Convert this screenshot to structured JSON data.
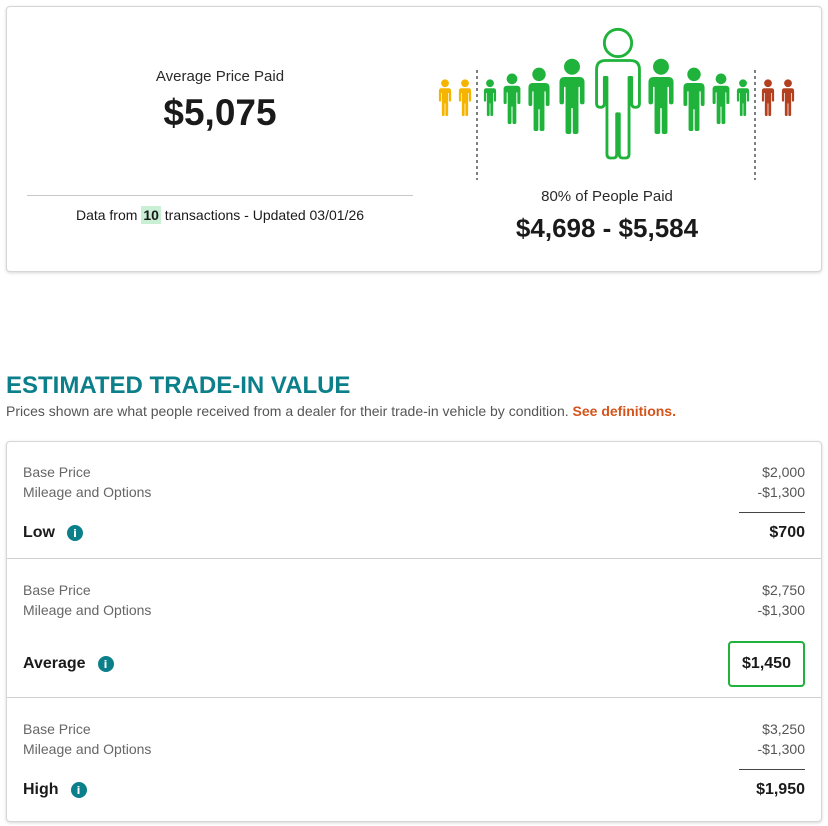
{
  "colors": {
    "accent": "#0b7f8a",
    "link": "#d4541b",
    "count_highlight": "#c9efd4",
    "success": "#1fb33b",
    "text": "#1a1a1a",
    "muted": "#666666"
  },
  "price_paid": {
    "label": "Average Price Paid",
    "value": "$5,075",
    "footnote_prefix": "Data from",
    "transaction_count": "10",
    "footnote_suffix": "transactions - Updated 03/01/26"
  },
  "price_distribution": {
    "label": "80% of People Paid",
    "range": "$4,698 - $5,584",
    "icon": "person-icon",
    "colors": {
      "below_range": "#f4b400",
      "in_range": "#1fb33b",
      "above_range": "#b3401f",
      "median_fill": "#ffffff"
    }
  },
  "trade_in": {
    "heading": "ESTIMATED TRADE-IN VALUE",
    "subtitle": "Prices shown are what people received from a dealer for their trade-in vehicle by condition.",
    "definitions_link": "See definitions.",
    "info_icon": "info-icon",
    "conditions": [
      {
        "name": "Low",
        "base_label": "Base Price",
        "base_value": "$2,000",
        "adjust_label": "Mileage and Options",
        "adjust_value": "-$1,300",
        "total": "$700",
        "highlighted": false
      },
      {
        "name": "Average",
        "base_label": "Base Price",
        "base_value": "$2,750",
        "adjust_label": "Mileage and Options",
        "adjust_value": "-$1,300",
        "total": "$1,450",
        "highlighted": true
      },
      {
        "name": "High",
        "base_label": "Base Price",
        "base_value": "$3,250",
        "adjust_label": "Mileage and Options",
        "adjust_value": "-$1,300",
        "total": "$1,950",
        "highlighted": false
      }
    ]
  }
}
